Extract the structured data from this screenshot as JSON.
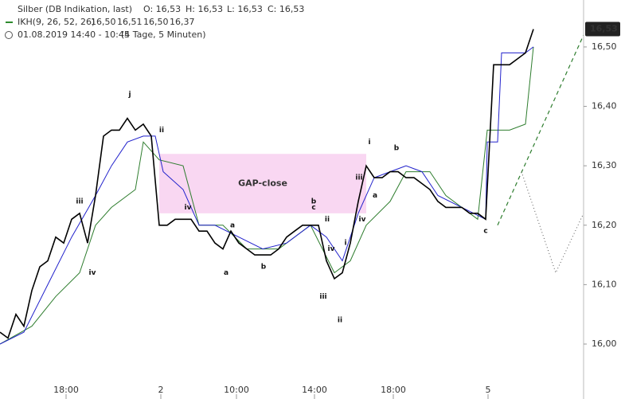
{
  "chart_data": {
    "type": "line",
    "header": {
      "title": "Silber (DB Indikation, last)",
      "ohlc": [
        "O: 16,53",
        "H: 16,53",
        "L: 16,53",
        "C: 16,53"
      ],
      "indicator": "IKH(9, 26, 52, 26)",
      "indicator_values": [
        {
          "label": "16,50",
          "color": "#2e8b2e"
        },
        {
          "label": "16,51",
          "color": "#2222cc"
        },
        {
          "label": "16,50",
          "color": "#b05cc8"
        },
        {
          "label": "16,37",
          "color": "#3cb33c"
        }
      ],
      "period": "01.08.2019 14:40 - 10:45",
      "range": "(4 Tage, 5 Minuten)"
    },
    "xlim": [
      0,
      733
    ],
    "xticks": [
      {
        "value": 83,
        "label": "18:00"
      },
      {
        "value": 202,
        "label": "2"
      },
      {
        "value": 297,
        "label": "10:00"
      },
      {
        "value": 395,
        "label": "14:00"
      },
      {
        "value": 494,
        "label": "18:00"
      },
      {
        "value": 613,
        "label": "5"
      }
    ],
    "ylim": [
      15.9075,
      16.579
    ],
    "yticks": [
      {
        "value": 16.0,
        "label": "16,00"
      },
      {
        "value": 16.1,
        "label": "16,10"
      },
      {
        "value": 16.2,
        "label": "16,20"
      },
      {
        "value": 16.3,
        "label": "16,30"
      },
      {
        "value": 16.4,
        "label": "16,40"
      },
      {
        "value": 16.5,
        "label": "16,50"
      }
    ],
    "last": {
      "value": 16.53,
      "label": "16,53"
    },
    "gap_zone": {
      "x": [
        200,
        460
      ],
      "y": [
        16.22,
        16.32
      ],
      "label": "GAP-close",
      "color": "#f7c6ec"
    },
    "series": [
      {
        "color": "#2e7d2e",
        "width": 1,
        "x": [
          0,
          40,
          70,
          100,
          120,
          140,
          170,
          180,
          200,
          230,
          250,
          280,
          310,
          350,
          390,
          420,
          440,
          460,
          490,
          510,
          540,
          560,
          600,
          612,
          640,
          660,
          670
        ],
        "values": [
          16.0,
          16.03,
          16.08,
          16.12,
          16.2,
          16.23,
          16.26,
          16.34,
          16.31,
          16.3,
          16.2,
          16.2,
          16.16,
          16.16,
          16.2,
          16.12,
          16.14,
          16.2,
          16.24,
          16.29,
          16.29,
          16.25,
          16.21,
          16.36,
          16.36,
          16.37,
          16.5
        ]
      },
      {
        "color": "#2222cc",
        "width": 1,
        "x": [
          0,
          30,
          60,
          90,
          120,
          140,
          160,
          180,
          195,
          205,
          230,
          250,
          270,
          300,
          330,
          360,
          390,
          410,
          430,
          450,
          470,
          490,
          510,
          530,
          550,
          580,
          610,
          612,
          625,
          630,
          660,
          670
        ],
        "values": [
          16.0,
          16.02,
          16.1,
          16.18,
          16.25,
          16.3,
          16.34,
          16.35,
          16.35,
          16.29,
          16.26,
          16.2,
          16.2,
          16.18,
          16.16,
          16.17,
          16.2,
          16.18,
          16.14,
          16.22,
          16.28,
          16.29,
          16.3,
          16.29,
          16.25,
          16.23,
          16.21,
          16.34,
          16.34,
          16.49,
          16.49,
          16.5
        ]
      },
      {
        "color": "#000000",
        "width": 1.6,
        "x": [
          0,
          10,
          20,
          30,
          40,
          50,
          60,
          70,
          80,
          90,
          100,
          110,
          120,
          130,
          140,
          150,
          160,
          170,
          180,
          190,
          200,
          210,
          220,
          230,
          240,
          250,
          260,
          270,
          280,
          290,
          300,
          310,
          320,
          330,
          340,
          350,
          360,
          370,
          380,
          390,
          400,
          410,
          420,
          430,
          440,
          450,
          460,
          470,
          480,
          490,
          500,
          510,
          520,
          530,
          540,
          550,
          560,
          570,
          580,
          590,
          600,
          610,
          620,
          630,
          640,
          650,
          660,
          670
        ],
        "values": [
          16.02,
          16.01,
          16.05,
          16.03,
          16.09,
          16.13,
          16.14,
          16.18,
          16.17,
          16.21,
          16.22,
          16.17,
          16.25,
          16.35,
          16.36,
          16.36,
          16.38,
          16.36,
          16.37,
          16.35,
          16.2,
          16.2,
          16.21,
          16.21,
          16.21,
          16.19,
          16.19,
          16.17,
          16.16,
          16.19,
          16.17,
          16.16,
          16.15,
          16.15,
          16.15,
          16.16,
          16.18,
          16.19,
          16.2,
          16.2,
          16.2,
          16.14,
          16.11,
          16.12,
          16.17,
          16.24,
          16.3,
          16.28,
          16.28,
          16.29,
          16.29,
          16.28,
          16.28,
          16.27,
          16.26,
          16.24,
          16.23,
          16.23,
          16.23,
          16.22,
          16.22,
          16.21,
          16.47,
          16.47,
          16.47,
          16.48,
          16.49,
          16.53
        ]
      },
      {
        "color": "#2e7d2e",
        "width": 1.2,
        "dash": "5,4",
        "x": [
          625,
          733
        ],
        "values": [
          16.2,
          16.52
        ]
      },
      {
        "color": "#555555",
        "width": 1,
        "dash": "1,3",
        "x": [
          655,
          698,
          733
        ],
        "values": [
          16.29,
          16.12,
          16.22
        ]
      }
    ],
    "annotations": [
      {
        "text": "j",
        "x": 163,
        "y": 16.42
      },
      {
        "text": "ii",
        "x": 203,
        "y": 16.36
      },
      {
        "text": "iii",
        "x": 100,
        "y": 16.24
      },
      {
        "text": "iv",
        "x": 116,
        "y": 16.12
      },
      {
        "text": "iv",
        "x": 236,
        "y": 16.23
      },
      {
        "text": "a",
        "x": 292,
        "y": 16.2
      },
      {
        "text": "a",
        "x": 284,
        "y": 16.12
      },
      {
        "text": "b",
        "x": 331,
        "y": 16.13
      },
      {
        "text": "b",
        "x": 394,
        "y": 16.24
      },
      {
        "text": "c",
        "x": 394,
        "y": 16.23
      },
      {
        "text": "ii",
        "x": 411,
        "y": 16.21
      },
      {
        "text": "iv",
        "x": 416,
        "y": 16.16
      },
      {
        "text": "iii",
        "x": 406,
        "y": 16.08
      },
      {
        "text": "ii",
        "x": 427,
        "y": 16.04
      },
      {
        "text": "i",
        "x": 434,
        "y": 16.17
      },
      {
        "text": "iii",
        "x": 451,
        "y": 16.28
      },
      {
        "text": "iv",
        "x": 455,
        "y": 16.21
      },
      {
        "text": "i",
        "x": 464,
        "y": 16.34
      },
      {
        "text": "a",
        "x": 471,
        "y": 16.25
      },
      {
        "text": "b",
        "x": 498,
        "y": 16.33
      },
      {
        "text": "c",
        "x": 610,
        "y": 16.19
      }
    ]
  }
}
